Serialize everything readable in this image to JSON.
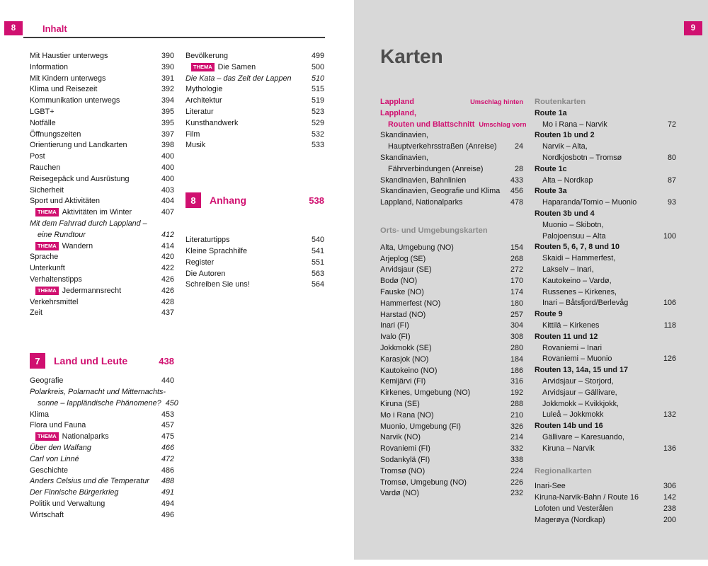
{
  "badge_label": "THEMA",
  "colors": {
    "accent": "#d01070",
    "heading_gray": "#8a8a8a",
    "right_page_bg": "#d8d8d8"
  },
  "left": {
    "page_number": "8",
    "header": "Inhalt",
    "col1": [
      {
        "k": "e",
        "t": "Mit Haustier unterwegs",
        "p": "390"
      },
      {
        "k": "e",
        "t": "Information",
        "p": "390"
      },
      {
        "k": "e",
        "t": "Mit Kindern unterwegs",
        "p": "391"
      },
      {
        "k": "e",
        "t": "Klima und Reisezeit",
        "p": "392"
      },
      {
        "k": "e",
        "t": "Kommunikation unterwegs",
        "p": "394"
      },
      {
        "k": "e",
        "t": "LGBT+",
        "p": "395"
      },
      {
        "k": "e",
        "t": "Notfälle",
        "p": "395"
      },
      {
        "k": "e",
        "t": "Öffnungszeiten",
        "p": "397"
      },
      {
        "k": "e",
        "t": "Orientierung und Landkarten",
        "p": "398"
      },
      {
        "k": "e",
        "t": "Post",
        "p": "400"
      },
      {
        "k": "e",
        "t": "Rauchen",
        "p": "400"
      },
      {
        "k": "e",
        "t": "Reisegepäck und Ausrüstung",
        "p": "400"
      },
      {
        "k": "e",
        "t": "Sicherheit",
        "p": "403"
      },
      {
        "k": "e",
        "t": "Sport und Aktivitäten",
        "p": "404"
      },
      {
        "k": "th",
        "t": "Aktivitäten im Winter",
        "p": "407"
      },
      {
        "k": "it",
        "t": "Mit dem Fahrrad durch Lappland –"
      },
      {
        "k": "it",
        "t": "eine Rundtour",
        "p": "412",
        "i": 1
      },
      {
        "k": "th",
        "t": "Wandern",
        "p": "414"
      },
      {
        "k": "e",
        "t": "Sprache",
        "p": "420"
      },
      {
        "k": "e",
        "t": "Unterkunft",
        "p": "422"
      },
      {
        "k": "e",
        "t": "Verhaltenstipps",
        "p": "426"
      },
      {
        "k": "th",
        "t": "Jedermannsrecht",
        "p": "426"
      },
      {
        "k": "e",
        "t": "Verkehrsmittel",
        "p": "428"
      },
      {
        "k": "e",
        "t": "Zeit",
        "p": "437"
      },
      {
        "k": "g",
        "s": 46
      },
      {
        "k": "sec",
        "n": "7",
        "t": "Land und Leute",
        "p": "438"
      },
      {
        "k": "g",
        "s": 8
      },
      {
        "k": "e",
        "t": "Geografie",
        "p": "440"
      },
      {
        "k": "it",
        "t": "Polarkreis, Polarnacht und Mitternachts-"
      },
      {
        "k": "it",
        "t": "sonne – lappländische Phänomene?",
        "p": "450",
        "i": 1
      },
      {
        "k": "e",
        "t": "Klima",
        "p": "453"
      },
      {
        "k": "e",
        "t": "Flora und Fauna",
        "p": "457"
      },
      {
        "k": "th",
        "t": "Nationalparks",
        "p": "475"
      },
      {
        "k": "it",
        "t": "Über den Walfang",
        "p": "466"
      },
      {
        "k": "it",
        "t": "Carl von Linné",
        "p": "472"
      },
      {
        "k": "e",
        "t": "Geschichte",
        "p": "486"
      },
      {
        "k": "it",
        "t": "Anders Celsius und die Temperatur",
        "p": "488"
      },
      {
        "k": "it",
        "t": "Der Finnische Bürgerkrieg",
        "p": "491"
      },
      {
        "k": "e",
        "t": "Politik und Verwaltung",
        "p": "494"
      },
      {
        "k": "e",
        "t": "Wirtschaft",
        "p": "496"
      }
    ],
    "col2": [
      {
        "k": "e",
        "t": "Bevölkerung",
        "p": "499"
      },
      {
        "k": "th",
        "t": "Die Samen",
        "p": "500"
      },
      {
        "k": "it",
        "t": "Die Kata – das Zelt der Lappen",
        "p": "510"
      },
      {
        "k": "e",
        "t": "Mythologie",
        "p": "515"
      },
      {
        "k": "e",
        "t": "Architektur",
        "p": "519"
      },
      {
        "k": "e",
        "t": "Literatur",
        "p": "523"
      },
      {
        "k": "e",
        "t": "Kunsthandwerk",
        "p": "529"
      },
      {
        "k": "e",
        "t": "Film",
        "p": "532"
      },
      {
        "k": "e",
        "t": "Musik",
        "p": "533"
      },
      {
        "k": "g",
        "s": 56
      },
      {
        "k": "sec",
        "n": "8",
        "t": "Anhang",
        "p": "538"
      },
      {
        "k": "g",
        "s": 36
      },
      {
        "k": "e",
        "t": "Literaturtipps",
        "p": "540"
      },
      {
        "k": "e",
        "t": "Kleine Sprachhilfe",
        "p": "541"
      },
      {
        "k": "e",
        "t": "Register",
        "p": "551"
      },
      {
        "k": "e",
        "t": "Die Autoren",
        "p": "563"
      },
      {
        "k": "e",
        "t": "Schreiben Sie uns!",
        "p": "564"
      }
    ]
  },
  "right": {
    "page_number": "9",
    "title": "Karten",
    "col1": [
      {
        "k": "pk",
        "t": "Lappland",
        "p": "Umschlag hinten"
      },
      {
        "k": "pk",
        "t": "Lappland,"
      },
      {
        "k": "pk",
        "t": "Routen und Blattschnitt",
        "p": "Umschlag vorn",
        "i": 1
      },
      {
        "k": "e",
        "t": "Skandinavien,"
      },
      {
        "k": "e",
        "t": "Hauptverkehrsstraßen (Anreise)",
        "p": "24",
        "i": 1
      },
      {
        "k": "e",
        "t": "Skandinavien,"
      },
      {
        "k": "e",
        "t": "Fährverbindungen (Anreise)",
        "p": "28",
        "i": 1
      },
      {
        "k": "e",
        "t": "Skandinavien, Bahnlinien",
        "p": "433"
      },
      {
        "k": "e",
        "t": "Skandinavien, Geografie und Klima",
        "p": "456"
      },
      {
        "k": "e",
        "t": "Lappland, Nationalparks",
        "p": "478"
      },
      {
        "k": "g",
        "s": 24
      },
      {
        "k": "h",
        "t": "Orts- und Umgebungskarten"
      },
      {
        "k": "g",
        "s": 8
      },
      {
        "k": "e",
        "t": "Alta, Umgebung (NO)",
        "p": "154"
      },
      {
        "k": "e",
        "t": "Arjeplog (SE)",
        "p": "268"
      },
      {
        "k": "e",
        "t": "Arvidsjaur (SE)",
        "p": "272"
      },
      {
        "k": "e",
        "t": "Bodø (NO)",
        "p": "170"
      },
      {
        "k": "e",
        "t": "Fauske (NO)",
        "p": "174"
      },
      {
        "k": "e",
        "t": "Hammerfest (NO)",
        "p": "180"
      },
      {
        "k": "e",
        "t": "Harstad (NO)",
        "p": "257"
      },
      {
        "k": "e",
        "t": "Inari (FI)",
        "p": "304"
      },
      {
        "k": "e",
        "t": "Ivalo (FI)",
        "p": "308"
      },
      {
        "k": "e",
        "t": "Jokkmokk (SE)",
        "p": "280"
      },
      {
        "k": "e",
        "t": "Karasjok (NO)",
        "p": "184"
      },
      {
        "k": "e",
        "t": "Kautokeino (NO)",
        "p": "186"
      },
      {
        "k": "e",
        "t": "Kemijärvi (FI)",
        "p": "316"
      },
      {
        "k": "e",
        "t": "Kirkenes, Umgebung (NO)",
        "p": "192"
      },
      {
        "k": "e",
        "t": "Kiruna (SE)",
        "p": "288"
      },
      {
        "k": "e",
        "t": "Mo i Rana (NO)",
        "p": "210"
      },
      {
        "k": "e",
        "t": "Muonio, Umgebung (FI)",
        "p": "326"
      },
      {
        "k": "e",
        "t": "Narvik (NO)",
        "p": "214"
      },
      {
        "k": "e",
        "t": "Rovaniemi (FI)",
        "p": "332"
      },
      {
        "k": "e",
        "t": "Sodankylä (FI)",
        "p": "338"
      },
      {
        "k": "e",
        "t": "Tromsø (NO)",
        "p": "224"
      },
      {
        "k": "e",
        "t": "Tromsø, Umgebung (NO)",
        "p": "226"
      },
      {
        "k": "e",
        "t": "Vardø (NO)",
        "p": "232"
      }
    ],
    "col2": [
      {
        "k": "h",
        "t": "Routenkarten"
      },
      {
        "k": "b",
        "t": "Route 1a"
      },
      {
        "k": "e",
        "t": "Mo i Rana – Narvik",
        "p": "72",
        "i": 1
      },
      {
        "k": "b",
        "t": "Routen 1b und 2"
      },
      {
        "k": "e",
        "t": "Narvik – Alta,",
        "i": 1
      },
      {
        "k": "e",
        "t": "Nordkjosbotn – Tromsø",
        "p": "80",
        "i": 1
      },
      {
        "k": "b",
        "t": "Route 1c"
      },
      {
        "k": "e",
        "t": "Alta – Nordkap",
        "p": "87",
        "i": 1
      },
      {
        "k": "b",
        "t": "Route 3a"
      },
      {
        "k": "e",
        "t": "Haparanda/Tornio – Muonio",
        "p": "93",
        "i": 1
      },
      {
        "k": "b",
        "t": "Routen 3b und 4"
      },
      {
        "k": "e",
        "t": "Muonio – Skibotn,",
        "i": 1
      },
      {
        "k": "e",
        "t": "Palojoensuu – Alta",
        "p": "100",
        "i": 1
      },
      {
        "k": "b",
        "t": "Routen 5, 6, 7, 8 und 10"
      },
      {
        "k": "e",
        "t": "Skaidi – Hammerfest,",
        "i": 1
      },
      {
        "k": "e",
        "t": "Lakselv – Inari,",
        "i": 1
      },
      {
        "k": "e",
        "t": "Kautokeino – Vardø,",
        "i": 1
      },
      {
        "k": "e",
        "t": "Russenes – Kirkenes,",
        "i": 1
      },
      {
        "k": "e",
        "t": "Inari – Båtsfjord/Berlevåg",
        "p": "106",
        "i": 1
      },
      {
        "k": "b",
        "t": "Route 9"
      },
      {
        "k": "e",
        "t": "Kittilä – Kirkenes",
        "p": "118",
        "i": 1
      },
      {
        "k": "b",
        "t": "Routen 11 und 12"
      },
      {
        "k": "e",
        "t": "Rovaniemi – Inari",
        "i": 1
      },
      {
        "k": "e",
        "t": "Rovaniemi – Muonio",
        "p": "126",
        "i": 1
      },
      {
        "k": "b",
        "t": "Routen 13, 14a, 15 und 17"
      },
      {
        "k": "e",
        "t": "Arvidsjaur – Storjord,",
        "i": 1
      },
      {
        "k": "e",
        "t": "Arvidsjaur – Gällivare,",
        "i": 1
      },
      {
        "k": "e",
        "t": "Jokkmokk – Kvikkjokk,",
        "i": 1
      },
      {
        "k": "e",
        "t": "Luleå – Jokkmokk",
        "p": "132",
        "i": 1
      },
      {
        "k": "b",
        "t": "Routen 14b und 16"
      },
      {
        "k": "e",
        "t": "Gällivare – Karesuando,",
        "i": 1
      },
      {
        "k": "e",
        "t": "Kiruna – Narvik",
        "p": "136",
        "i": 1
      },
      {
        "k": "g",
        "s": 16
      },
      {
        "k": "h",
        "t": "Regionalkarten"
      },
      {
        "k": "g",
        "s": 6
      },
      {
        "k": "e",
        "t": "Inari-See",
        "p": "306"
      },
      {
        "k": "e",
        "t": "Kiruna-Narvik-Bahn / Route 16",
        "p": "142"
      },
      {
        "k": "e",
        "t": "Lofoten und Vesterålen",
        "p": "238"
      },
      {
        "k": "e",
        "t": "Magerøya (Nordkap)",
        "p": "200"
      }
    ]
  }
}
